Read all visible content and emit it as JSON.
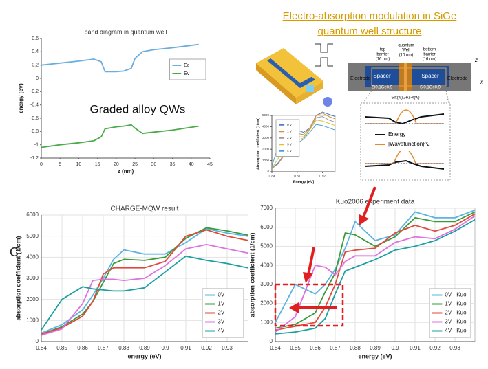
{
  "slide": {
    "header": [
      "Electro-absorption modulation in SiGe",
      "quantum well structure"
    ],
    "annotation": "Graded alloy QWs",
    "panel_letter": "C",
    "diagram": {
      "top_barrier": [
        "top",
        "barrier",
        "(16 nm)"
      ],
      "quantum_well": [
        "quantum",
        "Well",
        "(10 nm)"
      ],
      "bottom_barrier": [
        "bottom",
        "barrier",
        "(16 nm)"
      ],
      "spacer": "Spacer",
      "electrode": "Electrode",
      "alloy_left": "Si0.1Ge0.9",
      "alloy_right": "Si0.1Ge0.9",
      "alloy_well": "Six(w)Ge1-x(w)",
      "axis_z": "z",
      "axis_x": "x",
      "legend": [
        "Energy",
        "|Wavefunction|^2"
      ]
    }
  },
  "chart_data": [
    {
      "type": "line",
      "title": "band diagram in quantum well",
      "x_label": "z (nm)",
      "y_label": "energy (eV)",
      "x": [
        0,
        5,
        10,
        14,
        16,
        17,
        20,
        22,
        24,
        25,
        27,
        30,
        35,
        42
      ],
      "series": [
        {
          "name": "Ec",
          "color": "#6aaee0",
          "values": [
            0.2,
            0.23,
            0.26,
            0.29,
            0.25,
            0.1,
            0.1,
            0.11,
            0.15,
            0.3,
            0.4,
            0.43,
            0.46,
            0.51
          ]
        },
        {
          "name": "Ev",
          "color": "#4aaa4a",
          "values": [
            -1.04,
            -1.0,
            -0.97,
            -0.94,
            -0.88,
            -0.76,
            -0.73,
            -0.72,
            -0.7,
            -0.75,
            -0.83,
            -0.81,
            -0.78,
            -0.72
          ]
        }
      ],
      "xlim": [
        0,
        45
      ],
      "xticks": [
        0,
        5,
        10,
        15,
        20,
        25,
        30,
        35,
        40,
        45
      ],
      "ylim": [
        -1.2,
        0.6
      ],
      "yticks": [
        -1.2,
        -1,
        -0.8,
        -0.6,
        -0.4,
        -0.2,
        0,
        0.2,
        0.4,
        0.6
      ],
      "grid": false,
      "legend": "upper right"
    },
    {
      "type": "line",
      "x_label": "Energy [eV]",
      "y_label": "Absorption coefficient [1/cm]",
      "x": [
        0.84,
        0.85,
        0.86,
        0.87,
        0.88,
        0.89,
        0.9,
        0.91,
        0.92,
        0.93,
        0.94
      ],
      "series": [
        {
          "name": "0 V",
          "color": "#4a7fd0",
          "values": [
            300,
            800,
            1600,
            3200,
            3700,
            3500,
            3900,
            5000,
            5300,
            5100,
            4900
          ]
        },
        {
          "name": "1 V",
          "color": "#e08a30",
          "values": [
            300,
            700,
            1500,
            3300,
            3400,
            3300,
            3900,
            5000,
            5200,
            4900,
            4700
          ]
        },
        {
          "name": "2 V",
          "color": "#9a9a9a",
          "values": [
            300,
            700,
            1700,
            3100,
            3100,
            3100,
            3800,
            4800,
            4900,
            4600,
            4400
          ]
        },
        {
          "name": "3 V",
          "color": "#e0c030",
          "values": [
            300,
            1200,
            2700,
            2700,
            2800,
            3000,
            3700,
            4600,
            4500,
            4300,
            4100
          ]
        },
        {
          "name": "4 V",
          "color": "#4aa0d8",
          "values": [
            500,
            2300,
            2300,
            2300,
            2500,
            2900,
            3500,
            4200,
            4100,
            3900,
            3700
          ]
        }
      ],
      "xlim": [
        0.84,
        0.94
      ],
      "xticks": [
        0.84,
        0.88,
        0.92
      ],
      "ylim": [
        0,
        5000
      ],
      "yticks": [
        0,
        1000,
        2000,
        3000,
        4000,
        5000
      ],
      "grid": false,
      "legend": "upper left"
    },
    {
      "type": "line",
      "title": "CHARGE-MQW result",
      "x_label": "energy (eV)",
      "y_label": "absorption coefficient (1/cm)",
      "x": [
        0.84,
        0.85,
        0.86,
        0.865,
        0.87,
        0.875,
        0.88,
        0.89,
        0.9,
        0.91,
        0.92,
        0.93,
        0.94
      ],
      "series": [
        {
          "name": "0V",
          "color": "#5ab4e0",
          "values": [
            400,
            800,
            1500,
            2200,
            3000,
            3900,
            4350,
            4150,
            4150,
            4700,
            5350,
            5150,
            5000
          ]
        },
        {
          "name": "1V",
          "color": "#3a9a3a",
          "values": [
            350,
            700,
            1300,
            1900,
            2800,
            3700,
            3900,
            3850,
            4000,
            4900,
            5400,
            5250,
            5050
          ]
        },
        {
          "name": "2V",
          "color": "#e04a3a",
          "values": [
            350,
            650,
            1200,
            1900,
            3200,
            3500,
            3500,
            3500,
            3800,
            5000,
            5300,
            5000,
            4800
          ]
        },
        {
          "name": "3V",
          "color": "#e070e0",
          "values": [
            300,
            600,
            1800,
            2900,
            2950,
            2950,
            2900,
            3000,
            3600,
            4400,
            4600,
            4400,
            4200
          ]
        },
        {
          "name": "4V",
          "color": "#1aa0a0",
          "values": [
            550,
            2000,
            2600,
            2500,
            2450,
            2400,
            2400,
            2550,
            3300,
            4050,
            3850,
            3700,
            3500
          ]
        }
      ],
      "xlim": [
        0.84,
        0.94
      ],
      "xticks": [
        0.84,
        0.85,
        0.86,
        0.87,
        0.88,
        0.89,
        0.9,
        0.91,
        0.92,
        0.93
      ],
      "ylim": [
        0,
        6000
      ],
      "yticks": [
        0,
        1000,
        2000,
        3000,
        4000,
        5000,
        6000
      ],
      "grid": true,
      "legend": "lower right"
    },
    {
      "type": "line",
      "title": "Kuo2006 experiment data",
      "x_label": "energy (eV)",
      "y_label": "absorption coefficient (1/cm)",
      "x": [
        0.84,
        0.85,
        0.86,
        0.865,
        0.87,
        0.875,
        0.88,
        0.89,
        0.9,
        0.91,
        0.92,
        0.93,
        0.94
      ],
      "series": [
        {
          "name": "0V - Kuo",
          "color": "#5ab4e0",
          "values": [
            1000,
            3000,
            2500,
            3000,
            3800,
            4900,
            6300,
            5300,
            5600,
            6800,
            6500,
            6500,
            6900
          ]
        },
        {
          "name": "1V - Kuo",
          "color": "#3a9a3a",
          "values": [
            700,
            900,
            1500,
            2600,
            3600,
            5700,
            5600,
            5000,
            5500,
            6500,
            6300,
            6300,
            6800
          ]
        },
        {
          "name": "2V - Kuo",
          "color": "#e04a3a",
          "values": [
            600,
            800,
            1000,
            1800,
            3000,
            4700,
            4800,
            4900,
            5700,
            6100,
            5800,
            6100,
            6700
          ]
        },
        {
          "name": "3V - Kuo",
          "color": "#e070e0",
          "values": [
            500,
            1300,
            4000,
            3900,
            3500,
            4200,
            4500,
            4500,
            5200,
            5500,
            5400,
            5900,
            6600
          ]
        },
        {
          "name": "4V - Kuo",
          "color": "#1aa0a0",
          "values": [
            400,
            500,
            700,
            1200,
            2500,
            3700,
            3900,
            4300,
            4800,
            5000,
            5300,
            5800,
            6400
          ]
        }
      ],
      "xlim": [
        0.84,
        0.94
      ],
      "xticks": [
        0.84,
        0.85,
        0.86,
        0.87,
        0.88,
        0.89,
        0.9,
        0.91,
        0.92,
        0.93
      ],
      "ylim": [
        0,
        7000
      ],
      "yticks": [
        0,
        1000,
        2000,
        3000,
        4000,
        5000,
        6000,
        7000
      ],
      "grid": true,
      "legend": "lower right"
    }
  ]
}
